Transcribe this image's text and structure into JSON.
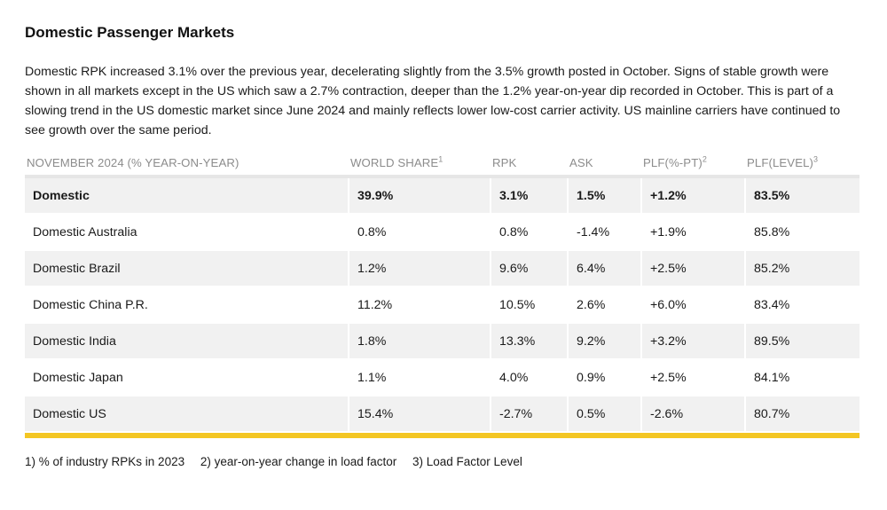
{
  "title": "Domestic Passenger Markets",
  "intro": "Domestic RPK increased 3.1% over the previous year, decelerating slightly from the 3.5% growth posted in October. Signs of stable growth were shown in all markets except in the US which saw a 2.7% contraction, deeper than the 1.2% year-on-year dip recorded in October. This is part of a slowing trend in the US domestic market since June 2024 and mainly reflects lower low-cost carrier activity. US mainline carriers have continued to see growth over the same period.",
  "table": {
    "headers": [
      {
        "label": "NOVEMBER 2024 (% YEAR-ON-YEAR)",
        "sup": ""
      },
      {
        "label": "WORLD SHARE",
        "sup": "1"
      },
      {
        "label": "RPK",
        "sup": ""
      },
      {
        "label": "ASK",
        "sup": ""
      },
      {
        "label": "PLF(%-PT)",
        "sup": "2"
      },
      {
        "label": "PLF(LEVEL)",
        "sup": "3"
      }
    ],
    "rows": [
      {
        "market": "Domestic",
        "world_share": "39.9%",
        "rpk": "3.1%",
        "ask": "1.5%",
        "plf_pt": "+1.2%",
        "plf_level": "83.5%"
      },
      {
        "market": "Domestic Australia",
        "world_share": "0.8%",
        "rpk": "0.8%",
        "ask": "-1.4%",
        "plf_pt": "+1.9%",
        "plf_level": "85.8%"
      },
      {
        "market": "Domestic Brazil",
        "world_share": "1.2%",
        "rpk": "9.6%",
        "ask": "6.4%",
        "plf_pt": "+2.5%",
        "plf_level": "85.2%"
      },
      {
        "market": "Domestic China P.R.",
        "world_share": "11.2%",
        "rpk": "10.5%",
        "ask": "2.6%",
        "plf_pt": "+6.0%",
        "plf_level": "83.4%"
      },
      {
        "market": "Domestic India",
        "world_share": "1.8%",
        "rpk": "13.3%",
        "ask": "9.2%",
        "plf_pt": "+3.2%",
        "plf_level": "89.5%"
      },
      {
        "market": "Domestic Japan",
        "world_share": "1.1%",
        "rpk": "4.0%",
        "ask": "0.9%",
        "plf_pt": "+2.5%",
        "plf_level": "84.1%"
      },
      {
        "market": "Domestic US",
        "world_share": "15.4%",
        "rpk": "-2.7%",
        "ask": "0.5%",
        "plf_pt": "-2.6%",
        "plf_level": "80.7%"
      }
    ]
  },
  "footnotes": [
    "1) % of industry RPKs in 2023",
    "2) year-on-year change in load factor",
    "3) Load Factor Level"
  ],
  "colors": {
    "accent_rule": "#f3c623",
    "row_shade": "#f1f1f1",
    "header_text": "#8c8c8c"
  }
}
